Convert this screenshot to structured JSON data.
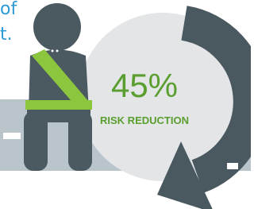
{
  "intro": {
    "line1": "of",
    "line2": "t."
  },
  "stat": {
    "figure": "45%",
    "caption": "RISK REDUCTION"
  }
}
